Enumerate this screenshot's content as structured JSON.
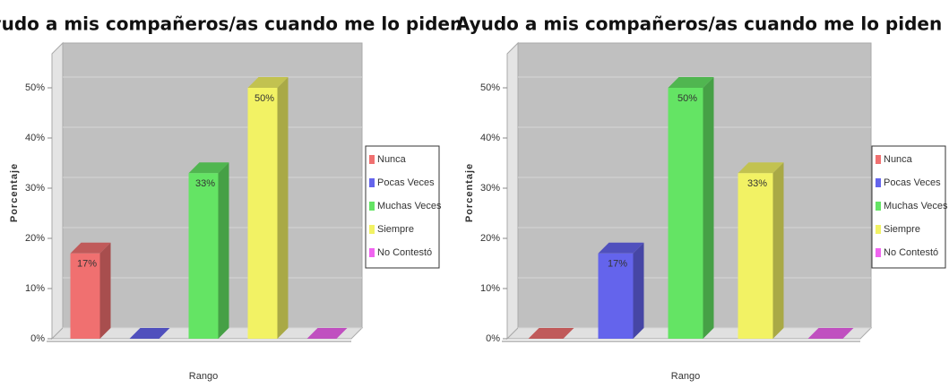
{
  "chart_data": [
    {
      "type": "bar",
      "title": "Ayudo a mis compañeros/as cuando me lo piden",
      "ylabel": "Porcentaje",
      "xlabel": "Rango",
      "categories": [
        "Nunca",
        "Pocas Veces",
        "Muchas Veces",
        "Siempre",
        "No Contestó"
      ],
      "values": [
        17,
        0,
        33,
        50,
        0
      ],
      "value_labels": [
        "17%",
        null,
        "33%",
        "50%",
        null
      ],
      "colors": [
        "#f07070",
        "#6464ec",
        "#64e464",
        "#f2f264",
        "#f064f0"
      ],
      "ylim": [
        0,
        55
      ],
      "yticks": [
        {
          "value": 0,
          "label": "0%"
        },
        {
          "value": 10,
          "label": "10%"
        },
        {
          "value": 20,
          "label": "20%"
        },
        {
          "value": 30,
          "label": "30%"
        },
        {
          "value": 40,
          "label": "40%"
        },
        {
          "value": 50,
          "label": "50%"
        }
      ],
      "grid": true
    },
    {
      "type": "bar",
      "title": "Ayudo a mis compañeros/as cuando me lo piden",
      "ylabel": "Porcentaje",
      "xlabel": "Rango",
      "categories": [
        "Nunca",
        "Pocas Veces",
        "Muchas Veces",
        "Siempre",
        "No Contestó"
      ],
      "values": [
        0,
        17,
        50,
        33,
        0
      ],
      "value_labels": [
        null,
        "17%",
        "50%",
        "33%",
        null
      ],
      "colors": [
        "#f07070",
        "#6464ec",
        "#64e464",
        "#f2f264",
        "#f064f0"
      ],
      "ylim": [
        0,
        55
      ],
      "yticks": [
        {
          "value": 0,
          "label": "0%"
        },
        {
          "value": 10,
          "label": "10%"
        },
        {
          "value": 20,
          "label": "20%"
        },
        {
          "value": 30,
          "label": "30%"
        },
        {
          "value": 40,
          "label": "40%"
        },
        {
          "value": 50,
          "label": "50%"
        }
      ],
      "grid": true
    }
  ]
}
